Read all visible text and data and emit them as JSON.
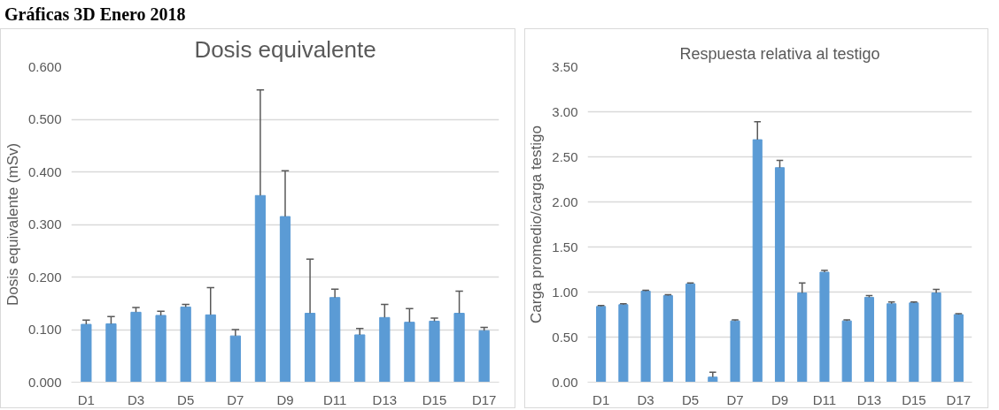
{
  "chart_data": [
    {
      "type": "bar",
      "title": "Dosis equivalente",
      "ylabel": "Dosis equivalente (mSv)",
      "annotations": [
        "Gráficas 3D Enero 2018"
      ],
      "categories": [
        "D1",
        null,
        "D3",
        null,
        "D5",
        null,
        "D7",
        null,
        "D9",
        null,
        "D11",
        null,
        "D13",
        null,
        "D15",
        null,
        "D17"
      ],
      "series": [
        {
          "color": "#5b9bd5",
          "values": [
            0.11,
            0.111,
            0.133,
            0.127,
            0.143,
            0.128,
            0.088,
            0.355,
            0.315,
            0.131,
            0.161,
            0.09,
            0.123,
            0.114,
            0.116,
            0.131,
            0.098
          ],
          "errors": [
            [
              0.11,
              0.118
            ],
            [
              0.111,
              0.125
            ],
            [
              0.133,
              0.142
            ],
            [
              0.127,
              0.135
            ],
            [
              0.143,
              0.148
            ],
            [
              0.128,
              0.18
            ],
            [
              0.088,
              0.1
            ],
            [
              0.355,
              0.556
            ],
            [
              0.315,
              0.402
            ],
            [
              0.131,
              0.234
            ],
            [
              0.161,
              0.177
            ],
            [
              0.09,
              0.102
            ],
            [
              0.123,
              0.148
            ],
            [
              0.114,
              0.14
            ],
            [
              0.116,
              0.122
            ],
            [
              0.131,
              0.173
            ],
            [
              0.098,
              0.104
            ]
          ]
        }
      ],
      "ylim": [
        0,
        0.6
      ],
      "yticks": [
        {
          "value": 0,
          "label": "0.000"
        },
        {
          "value": 0.1,
          "label": "0.100"
        },
        {
          "value": 0.2,
          "label": "0.200"
        },
        {
          "value": 0.3,
          "label": "0.300"
        },
        {
          "value": 0.4,
          "label": "0.400"
        },
        {
          "value": 0.5,
          "label": "0.500"
        },
        {
          "value": 0.6,
          "label": "0.600"
        }
      ],
      "grid": "y"
    },
    {
      "type": "bar",
      "title": "Respuesta relativa al testigo",
      "ylabel": "Carga promedio/carga testigo",
      "categories": [
        "D1",
        null,
        "D3",
        null,
        "D5",
        null,
        "D7",
        null,
        "D9",
        null,
        "D11",
        null,
        "D13",
        null,
        "D15",
        null,
        "D17"
      ],
      "series": [
        {
          "color": "#5b9bd5",
          "values": [
            0.84,
            0.86,
            1.01,
            0.96,
            1.09,
            0.056,
            0.68,
            2.69,
            2.38,
            0.99,
            1.22,
            0.68,
            0.94,
            0.87,
            0.88,
            0.99,
            0.75
          ],
          "errors": [
            [
              0.84,
              0.85
            ],
            [
              0.86,
              0.87
            ],
            [
              1.01,
              1.02
            ],
            [
              0.96,
              0.97
            ],
            [
              1.09,
              1.1
            ],
            [
              0.056,
              0.11
            ],
            [
              0.68,
              0.69
            ],
            [
              2.69,
              2.89
            ],
            [
              2.38,
              2.46
            ],
            [
              0.99,
              1.1
            ],
            [
              1.22,
              1.24
            ],
            [
              0.68,
              0.69
            ],
            [
              0.94,
              0.96
            ],
            [
              0.87,
              0.89
            ],
            [
              0.88,
              0.89
            ],
            [
              0.99,
              1.03
            ],
            [
              0.75,
              0.76
            ]
          ]
        }
      ],
      "ylim": [
        0,
        3.5
      ],
      "yticks": [
        {
          "value": 0,
          "label": "0.00"
        },
        {
          "value": 0.5,
          "label": "0.50"
        },
        {
          "value": 1,
          "label": "1.00"
        },
        {
          "value": 1.5,
          "label": "1.50"
        },
        {
          "value": 2,
          "label": "2.00"
        },
        {
          "value": 2.5,
          "label": "2.50"
        },
        {
          "value": 3,
          "label": "3.00"
        },
        {
          "value": 3.5,
          "label": "3.50"
        }
      ],
      "grid": "y"
    }
  ]
}
